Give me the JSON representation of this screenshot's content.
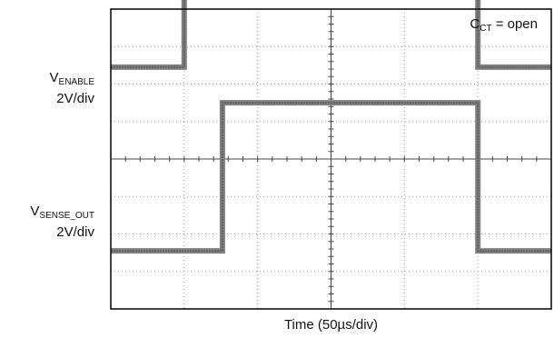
{
  "chart_data": {
    "type": "line",
    "title": "",
    "xlabel": "Time (50µs/div)",
    "ylabel": "",
    "annotation": {
      "main": "C",
      "sub": "CT",
      "tail": " = open"
    },
    "divisions": {
      "x": 6,
      "y": 8
    },
    "grid": true,
    "series": [
      {
        "name": "V_ENABLE",
        "label_main": "V",
        "label_sub": "ENABLE",
        "scale": "2V/div",
        "color": "#7f7f7f",
        "x": [
          0,
          1.0,
          1.0,
          5.0,
          5.0,
          6.0
        ],
        "y": [
          2.45,
          2.45,
          5.5,
          5.5,
          2.45,
          2.45
        ]
      },
      {
        "name": "V_SENSE_OUT",
        "label_main": "V",
        "label_sub": "SENSE_OUT",
        "scale": "2V/div",
        "color": "#7f7f7f",
        "x": [
          0,
          1.52,
          1.52,
          5.0,
          5.0,
          6.0
        ],
        "y": [
          -2.45,
          -2.45,
          1.5,
          1.5,
          -2.45,
          -2.45
        ]
      }
    ]
  }
}
